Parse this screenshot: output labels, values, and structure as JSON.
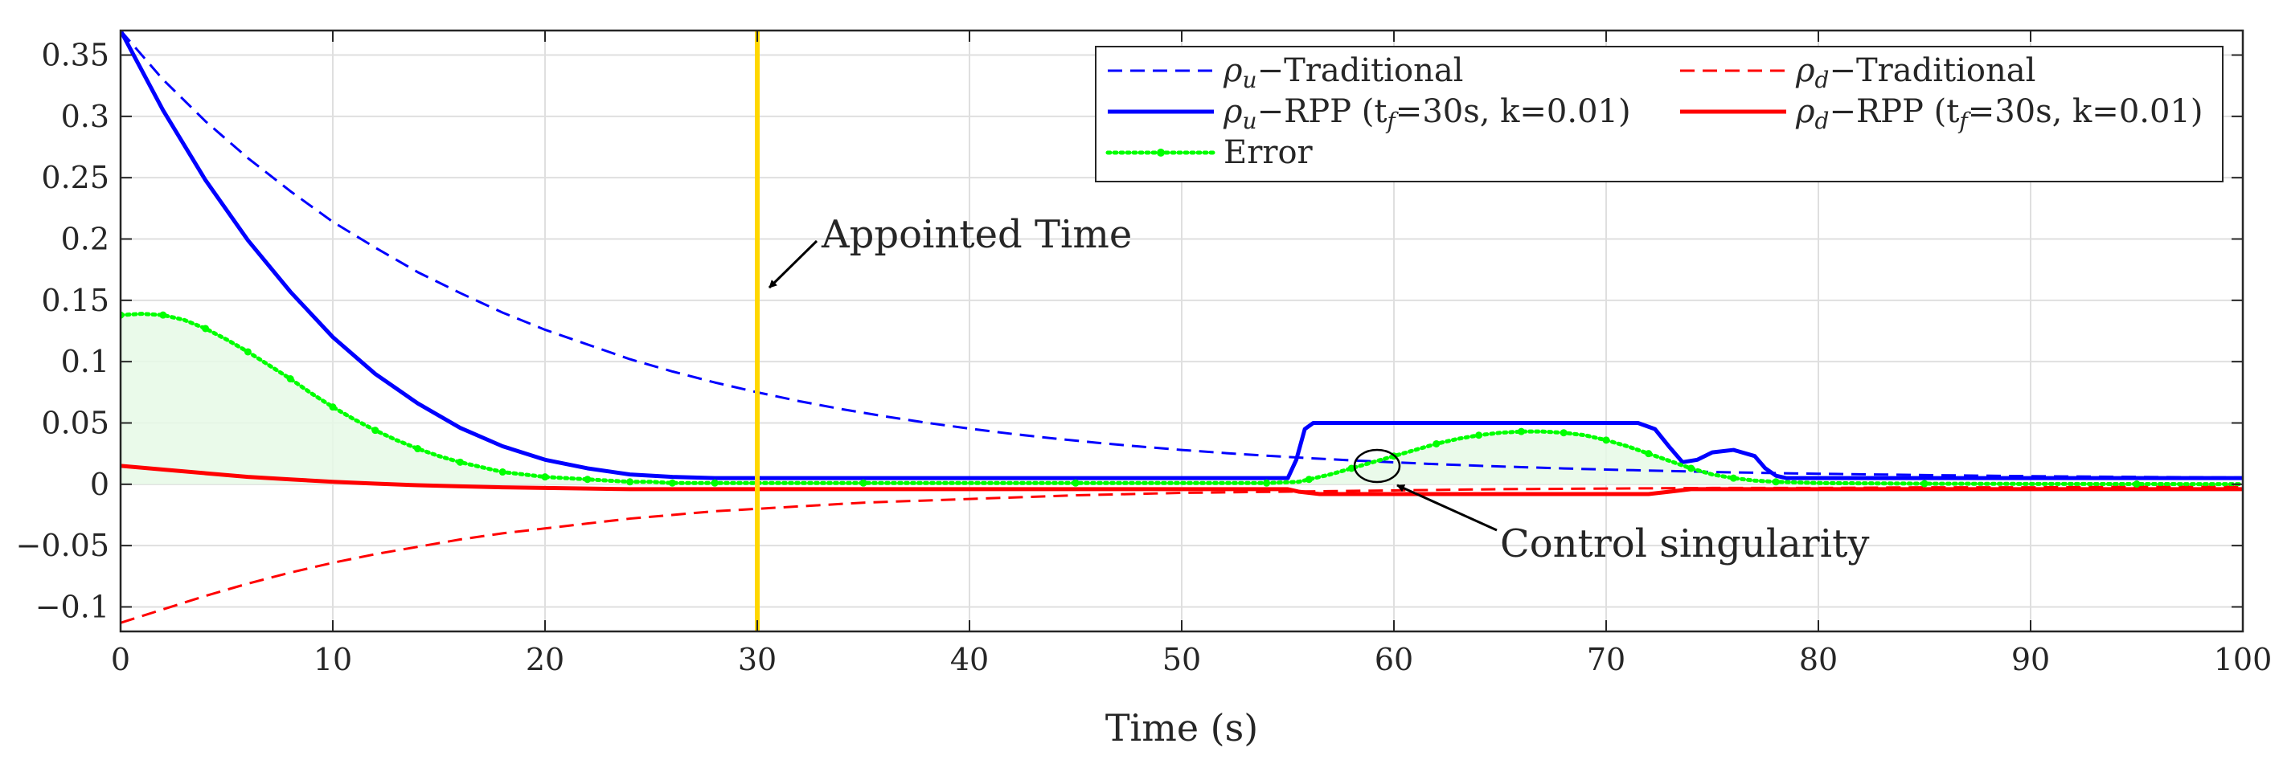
{
  "chart_data": {
    "type": "line",
    "title": "",
    "xlabel": "Time (s)",
    "ylabel": "",
    "xlim": [
      0,
      100
    ],
    "ylim": [
      -0.12,
      0.37
    ],
    "xticks": [
      0,
      10,
      20,
      30,
      40,
      50,
      60,
      70,
      80,
      90,
      100
    ],
    "xtick_labels": [
      "0",
      "10",
      "20",
      "30",
      "40",
      "50",
      "60",
      "70",
      "80",
      "90",
      "100"
    ],
    "yticks": [
      -0.1,
      -0.05,
      0,
      0.05,
      0.1,
      0.15,
      0.2,
      0.25,
      0.3,
      0.35
    ],
    "ytick_labels": [
      "−0.1",
      "−0.05",
      "0",
      "0.05",
      "0.1",
      "0.15",
      "0.2",
      "0.25",
      "0.3",
      "0.35"
    ],
    "grid": true,
    "legend_position": "top-right",
    "series": [
      {
        "name": "ρu−Traditional",
        "legend_main": "ρ",
        "legend_sub": "u",
        "legend_rest": "−Traditional",
        "color": "#0000ff",
        "style": "dashed",
        "x": [
          0,
          2,
          4,
          6,
          8,
          10,
          12,
          14,
          16,
          18,
          20,
          22,
          24,
          26,
          28,
          30,
          32,
          34,
          36,
          38,
          40,
          42,
          44,
          46,
          48,
          50,
          52,
          54,
          56,
          58,
          60,
          62,
          64,
          66,
          68,
          70,
          72,
          74,
          76,
          78,
          80,
          85,
          90,
          95,
          100
        ],
        "y": [
          0.37,
          0.33,
          0.296,
          0.266,
          0.239,
          0.214,
          0.193,
          0.173,
          0.156,
          0.14,
          0.126,
          0.114,
          0.102,
          0.092,
          0.083,
          0.075,
          0.0677,
          0.0612,
          0.0554,
          0.0501,
          0.0454,
          0.0411,
          0.0373,
          0.0339,
          0.0308,
          0.028,
          0.0255,
          0.0233,
          0.0213,
          0.0195,
          0.0179,
          0.0164,
          0.0151,
          0.014,
          0.0129,
          0.012,
          0.0112,
          0.0104,
          0.0097,
          0.0091,
          0.0086,
          0.0075,
          0.0066,
          0.006,
          0.0055
        ]
      },
      {
        "name": "ρu−RPP (tf=30s, k=0.01)",
        "legend_main": "ρ",
        "legend_sub": "u",
        "legend_rest": "−RPP (t",
        "legend_sub2": "f",
        "legend_rest2": "=30s, k=0.01)",
        "color": "#0000ff",
        "style": "solid",
        "x": [
          0,
          2,
          4,
          6,
          8,
          10,
          12,
          14,
          16,
          18,
          20,
          22,
          24,
          26,
          28,
          30,
          40,
          50,
          55,
          55.4,
          55.8,
          56.2,
          60,
          65,
          70,
          71.5,
          72.3,
          73,
          73.6,
          74.3,
          75,
          76,
          77,
          77.5,
          78,
          78.5,
          80,
          90,
          100
        ],
        "y": [
          0.37,
          0.305,
          0.248,
          0.199,
          0.157,
          0.12,
          0.09,
          0.066,
          0.046,
          0.031,
          0.02,
          0.013,
          0.008,
          0.006,
          0.005,
          0.005,
          0.005,
          0.005,
          0.005,
          0.02,
          0.045,
          0.05,
          0.05,
          0.05,
          0.05,
          0.05,
          0.045,
          0.03,
          0.018,
          0.02,
          0.026,
          0.028,
          0.023,
          0.013,
          0.007,
          0.005,
          0.005,
          0.005,
          0.005
        ]
      },
      {
        "name": "ρd−Traditional",
        "legend_main": "ρ",
        "legend_sub": "d",
        "legend_rest": "−Traditional",
        "color": "#ff0000",
        "style": "dashed",
        "x": [
          0,
          2,
          4,
          6,
          8,
          10,
          12,
          14,
          16,
          18,
          20,
          22,
          24,
          26,
          28,
          30,
          35,
          40,
          45,
          50,
          55,
          60,
          65,
          70,
          75,
          80,
          85,
          90,
          95,
          100
        ],
        "y": [
          -0.113,
          -0.102,
          -0.091,
          -0.081,
          -0.072,
          -0.064,
          -0.057,
          -0.051,
          -0.045,
          -0.04,
          -0.036,
          -0.032,
          -0.028,
          -0.025,
          -0.022,
          -0.02,
          -0.015,
          -0.012,
          -0.009,
          -0.007,
          -0.006,
          -0.005,
          -0.004,
          -0.0035,
          -0.003,
          -0.003,
          -0.0025,
          -0.0025,
          -0.002,
          -0.002
        ]
      },
      {
        "name": "ρd−RPP (tf=30s, k=0.01)",
        "legend_main": "ρ",
        "legend_sub": "d",
        "legend_rest": "−RPP (t",
        "legend_sub2": "f",
        "legend_rest2": "=30s, k=0.01)",
        "color": "#ff0000",
        "style": "solid",
        "x": [
          0,
          2,
          4,
          6,
          8,
          10,
          12,
          14,
          16,
          18,
          20,
          22,
          24,
          26,
          28,
          30,
          40,
          50,
          55,
          55.5,
          56.5,
          60,
          70,
          72,
          73,
          74,
          76,
          78,
          80,
          90,
          100
        ],
        "y": [
          0.015,
          0.012,
          0.009,
          0.006,
          0.004,
          0.002,
          0.0005,
          -0.0008,
          -0.0017,
          -0.0025,
          -0.003,
          -0.0035,
          -0.004,
          -0.004,
          -0.004,
          -0.004,
          -0.004,
          -0.004,
          -0.004,
          -0.006,
          -0.008,
          -0.008,
          -0.008,
          -0.008,
          -0.006,
          -0.004,
          -0.004,
          -0.004,
          -0.004,
          -0.004,
          -0.004
        ]
      },
      {
        "name": "Error",
        "legend_main": "Error",
        "color": "#00ff00",
        "style": "dotted-marker",
        "x": [
          0,
          1,
          2,
          3,
          4,
          5,
          6,
          7,
          8,
          9,
          10,
          11,
          12,
          13,
          14,
          15,
          16,
          17,
          18,
          19,
          20,
          21,
          22,
          23,
          24,
          25,
          26,
          27,
          28,
          30,
          35,
          40,
          45,
          50,
          54,
          55.5,
          56,
          57,
          58,
          59,
          60,
          61,
          62,
          63,
          64,
          65,
          66,
          67,
          68,
          69,
          70,
          71,
          72,
          73,
          74,
          75,
          76,
          77,
          78,
          80,
          85,
          90,
          95,
          100
        ],
        "y": [
          0.138,
          0.139,
          0.138,
          0.134,
          0.127,
          0.118,
          0.108,
          0.097,
          0.086,
          0.074,
          0.063,
          0.053,
          0.044,
          0.036,
          0.029,
          0.023,
          0.018,
          0.014,
          0.01,
          0.008,
          0.006,
          0.005,
          0.004,
          0.003,
          0.002,
          0.002,
          0.001,
          0.001,
          0.001,
          0.001,
          0.001,
          0.001,
          0.001,
          0.001,
          0.001,
          0.002,
          0.004,
          0.008,
          0.013,
          0.018,
          0.023,
          0.028,
          0.033,
          0.037,
          0.04,
          0.042,
          0.043,
          0.043,
          0.042,
          0.04,
          0.036,
          0.031,
          0.025,
          0.019,
          0.013,
          0.008,
          0.005,
          0.003,
          0.002,
          0.001,
          0.0005,
          0.0003,
          0.0002,
          0.0001
        ]
      }
    ],
    "annotations": [
      {
        "text": "Appointed Time",
        "marker_x": 30,
        "color": "#ffd700"
      },
      {
        "text": "Control singularity",
        "target_x": 59.3,
        "target_y": 0.016
      }
    ]
  }
}
